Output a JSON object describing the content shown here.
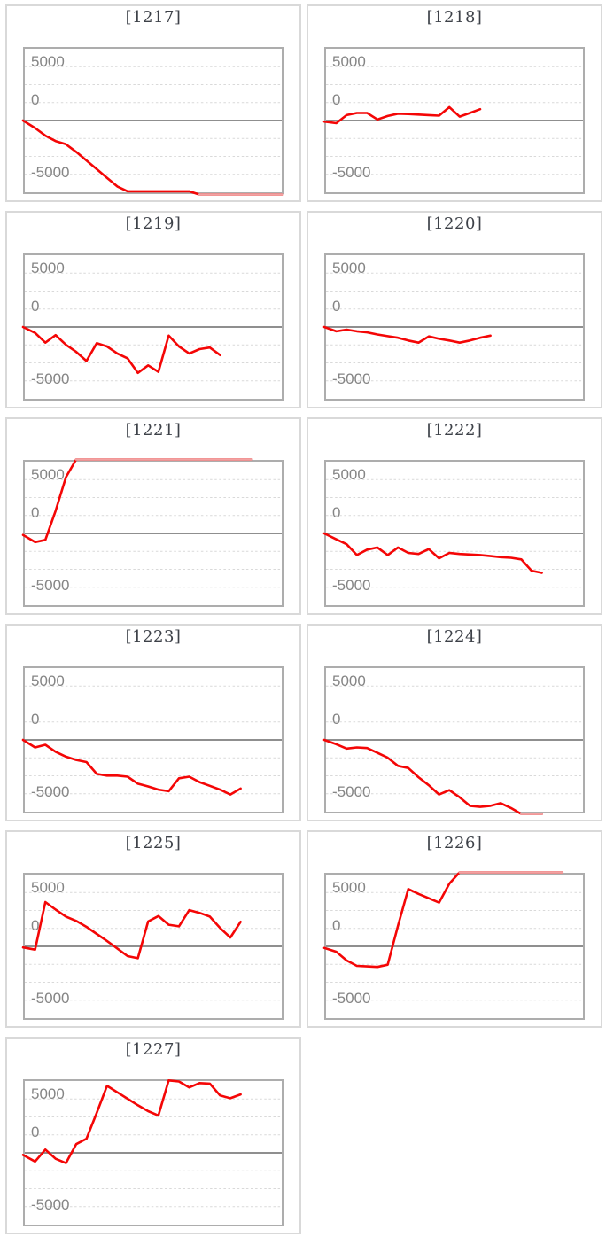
{
  "page": {
    "background_color": "#ffffff"
  },
  "style": {
    "title_color": "#3d4148",
    "axis_label_color": "#858585",
    "cell_border_color": "#d9d9d9",
    "plot_border_color": "#adadad",
    "gridline_color": "#d9d9d9",
    "zero_line_color": "#7f7f7f",
    "series_color": "#f40606",
    "series_clipped_color": "#f2a2a2"
  },
  "chart_data": {
    "type": "line",
    "layout": {
      "columns": 2,
      "rows": 6
    },
    "title": "",
    "xlabel": "",
    "ylabel": "",
    "ylim": [
      -6640,
      6640
    ],
    "yticks": [
      {
        "value": 5000,
        "label": "5000"
      },
      {
        "value": 0,
        "label": "0"
      },
      {
        "value": -5000,
        "label": "-5000"
      }
    ],
    "gridlines": {
      "style": "dotted",
      "interval": 1660,
      "zero_line": "solid",
      "grid_on": true
    },
    "x_slots": 26,
    "clip_threshold": 6800,
    "legend": "none",
    "charts": [
      {
        "title": "[1217]",
        "values": [
          0,
          -700,
          -1400,
          -1900,
          -2200,
          -2900,
          -3700,
          -4500,
          -5300,
          -6100,
          -6550,
          -6550,
          -6550,
          -6550,
          -6550,
          -6550,
          -6550,
          -6850,
          -6850,
          -6850,
          -6850,
          -6850,
          -6850,
          -6850,
          -6850,
          -6850
        ]
      },
      {
        "title": "[1218]",
        "values": [
          -100,
          -250,
          500,
          700,
          700,
          100,
          420,
          630,
          600,
          550,
          500,
          450,
          1240,
          360,
          700,
          1050
        ]
      },
      {
        "title": "[1219]",
        "values": [
          0,
          -550,
          -1450,
          -750,
          -1650,
          -2300,
          -3150,
          -1500,
          -1800,
          -2450,
          -2900,
          -4250,
          -3550,
          -4150,
          -800,
          -1800,
          -2450,
          -2050,
          -1900,
          -2600
        ]
      },
      {
        "title": "[1220]",
        "values": [
          0,
          -400,
          -250,
          -400,
          -500,
          -700,
          -850,
          -1000,
          -1250,
          -1450,
          -880,
          -1100,
          -1250,
          -1450,
          -1250,
          -1000,
          -800
        ]
      },
      {
        "title": "[1221]",
        "values": [
          -150,
          -800,
          -600,
          2100,
          5200,
          6850,
          6850,
          6850,
          6850,
          6850,
          6850,
          6850,
          6850,
          6850,
          6850,
          6850,
          6850,
          6850,
          6850,
          6850,
          6850,
          6850,
          6850
        ]
      },
      {
        "title": "[1222]",
        "values": [
          0,
          -550,
          -1000,
          -2000,
          -1500,
          -1300,
          -2000,
          -1300,
          -1800,
          -1900,
          -1450,
          -2300,
          -1800,
          -1900,
          -1950,
          -2000,
          -2100,
          -2200,
          -2250,
          -2400,
          -3450,
          -3650
        ]
      },
      {
        "title": "[1223]",
        "values": [
          0,
          -700,
          -450,
          -1100,
          -1550,
          -1850,
          -2050,
          -3150,
          -3300,
          -3300,
          -3400,
          -4050,
          -4300,
          -4600,
          -4750,
          -3550,
          -3400,
          -3900,
          -4250,
          -4600,
          -5050,
          -4500
        ]
      },
      {
        "title": "[1224]",
        "values": [
          0,
          -400,
          -800,
          -700,
          -750,
          -1200,
          -1650,
          -2400,
          -2600,
          -3450,
          -4200,
          -5050,
          -4650,
          -5300,
          -6100,
          -6200,
          -6100,
          -5850,
          -6300,
          -6850,
          -6850,
          -6850
        ]
      },
      {
        "title": "[1225]",
        "values": [
          -100,
          -300,
          4100,
          3400,
          2750,
          2350,
          1800,
          1150,
          500,
          -200,
          -900,
          -1100,
          2300,
          2800,
          2000,
          1850,
          3350,
          3100,
          2750,
          1700,
          820,
          2270
        ]
      },
      {
        "title": "[1226]",
        "values": [
          -150,
          -500,
          -1300,
          -1800,
          -1850,
          -1900,
          -1700,
          1900,
          5300,
          4850,
          4450,
          4050,
          5800,
          6850,
          6850,
          6850,
          6850,
          6850,
          6850,
          6850,
          6850,
          6850,
          6850,
          6850
        ]
      },
      {
        "title": "[1227]",
        "values": [
          -200,
          -800,
          300,
          -550,
          -950,
          800,
          1300,
          3700,
          6200,
          5600,
          5000,
          4400,
          3850,
          3450,
          6700,
          6600,
          6050,
          6450,
          6400,
          5300,
          5050,
          5400
        ]
      }
    ]
  }
}
